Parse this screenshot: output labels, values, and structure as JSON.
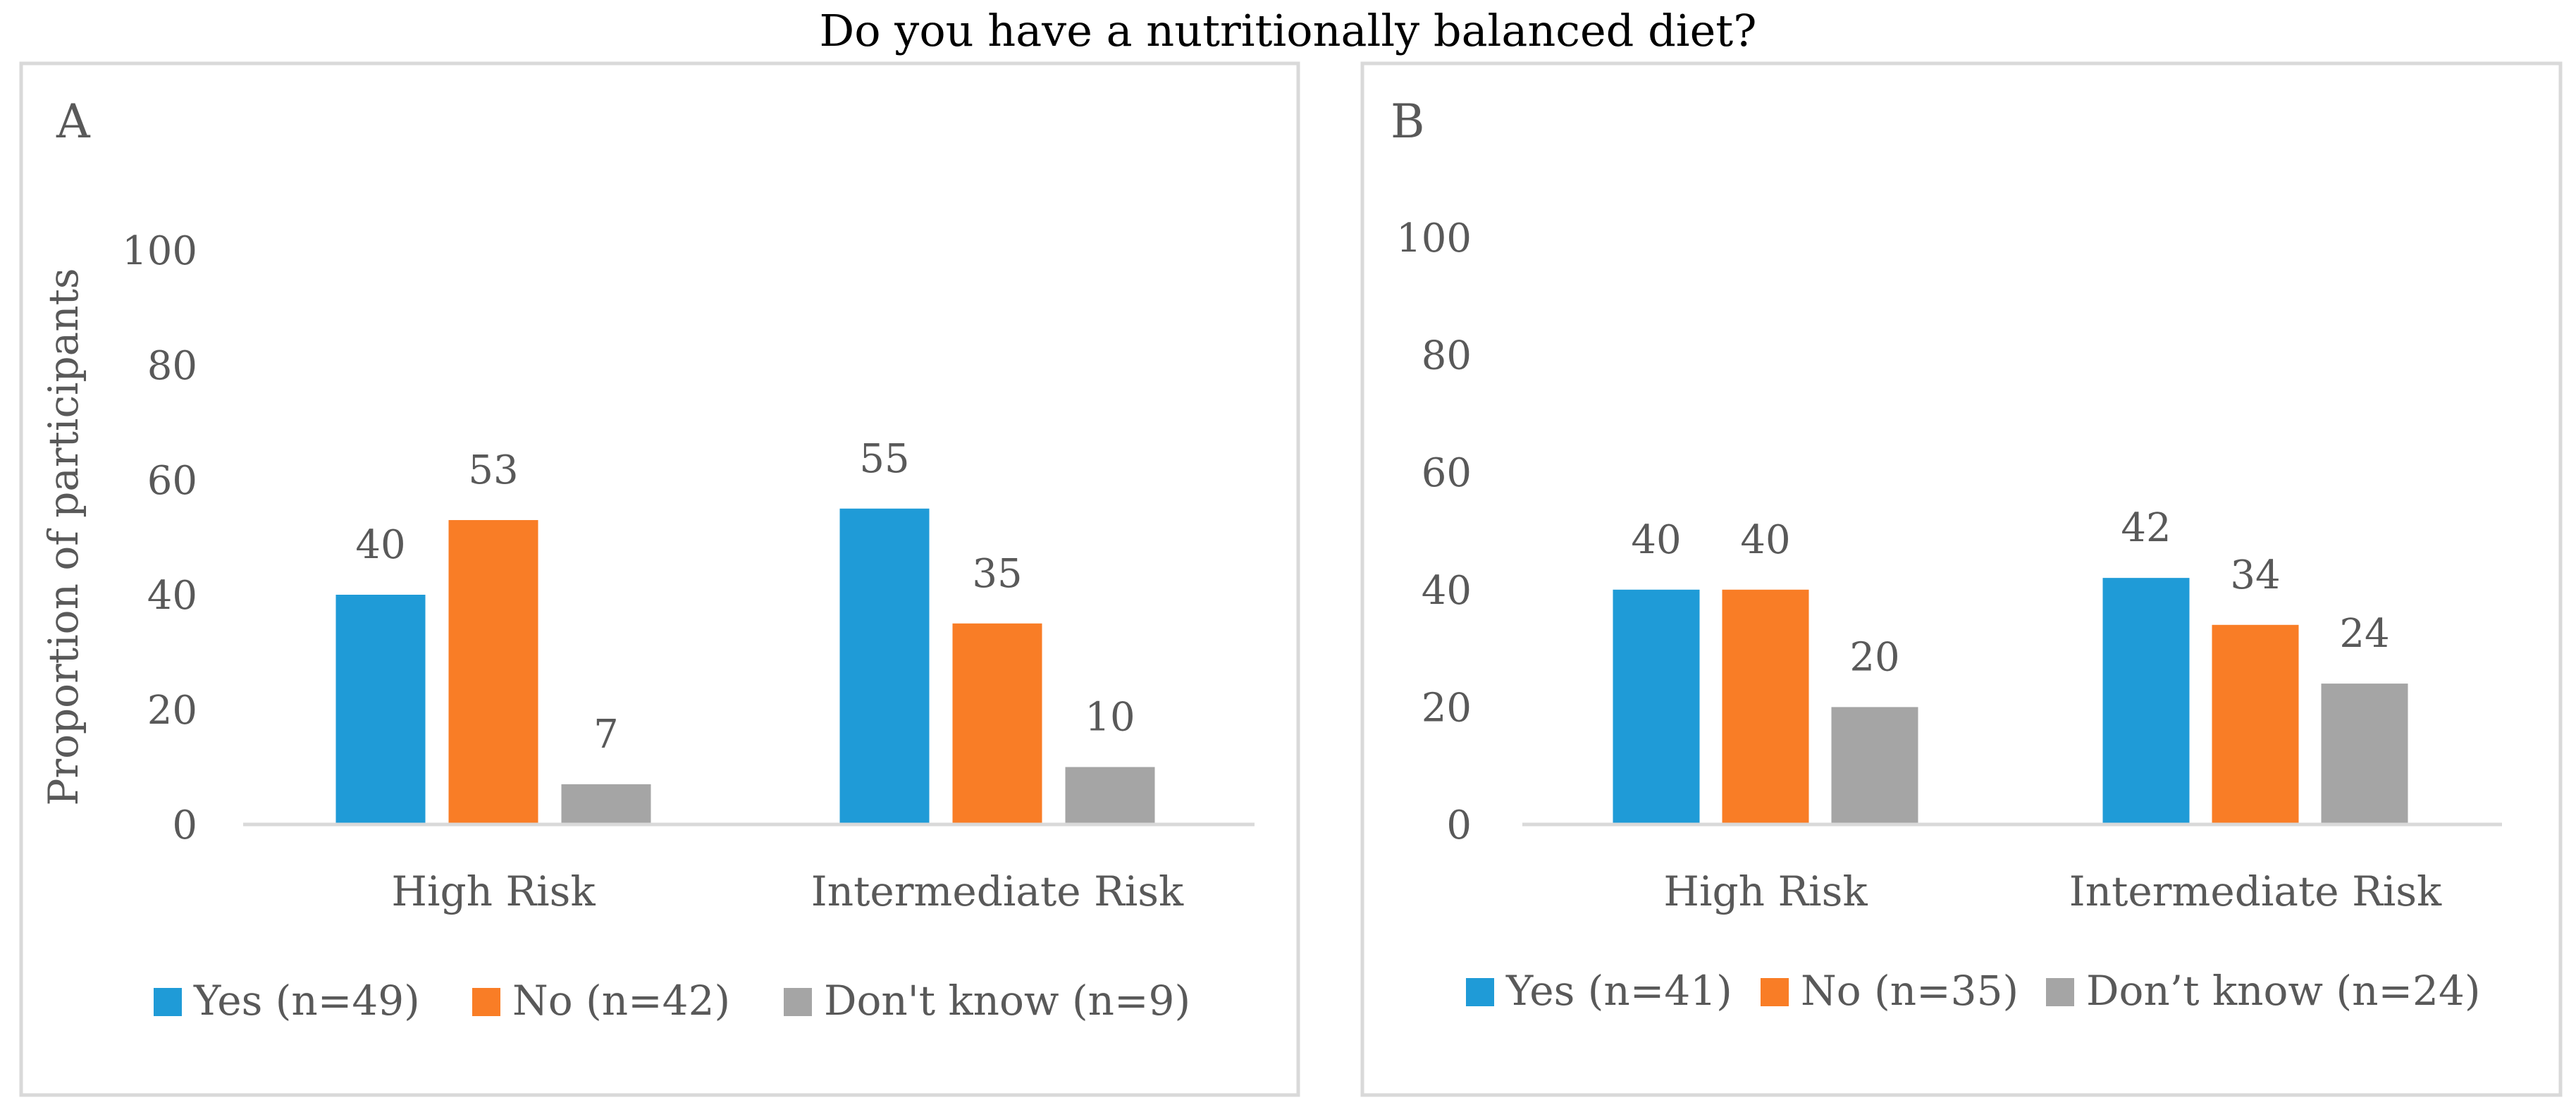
{
  "title": "Do you have a nutritionally balanced diet?",
  "colors": {
    "yes": "#1f9bd7",
    "no": "#f97d26",
    "dont_know": "#a5a5a5",
    "frame": "#d9d9d9",
    "text": "#595959"
  },
  "chart_data": [
    {
      "type": "bar",
      "panel": "A",
      "title": "",
      "xlabel": "",
      "ylabel": "Proportion of participants",
      "ylim": [
        0,
        100
      ],
      "yticks": [
        0,
        20,
        40,
        60,
        80,
        100
      ],
      "categories": [
        "High Risk",
        "Intermediate Risk"
      ],
      "series": [
        {
          "name": "Yes (n=49)",
          "key": "yes",
          "values": [
            40,
            55
          ]
        },
        {
          "name": "No (n=42)",
          "key": "no",
          "values": [
            53,
            35
          ]
        },
        {
          "name": "Don't know (n=9)",
          "key": "dont_know",
          "values": [
            7,
            10
          ]
        }
      ],
      "legend": "bottom",
      "grid": false
    },
    {
      "type": "bar",
      "panel": "B",
      "title": "",
      "xlabel": "",
      "ylabel": "",
      "ylim": [
        0,
        100
      ],
      "yticks": [
        0,
        20,
        40,
        60,
        80,
        100
      ],
      "categories": [
        "High Risk",
        "Intermediate Risk"
      ],
      "series": [
        {
          "name": "Yes (n=41)",
          "key": "yes",
          "values": [
            40,
            42
          ]
        },
        {
          "name": "No (n=35)",
          "key": "no",
          "values": [
            40,
            34
          ]
        },
        {
          "name": "Don’t know (n=24)",
          "key": "dont_know",
          "values": [
            20,
            24
          ]
        }
      ],
      "legend": "bottom",
      "grid": false
    }
  ]
}
